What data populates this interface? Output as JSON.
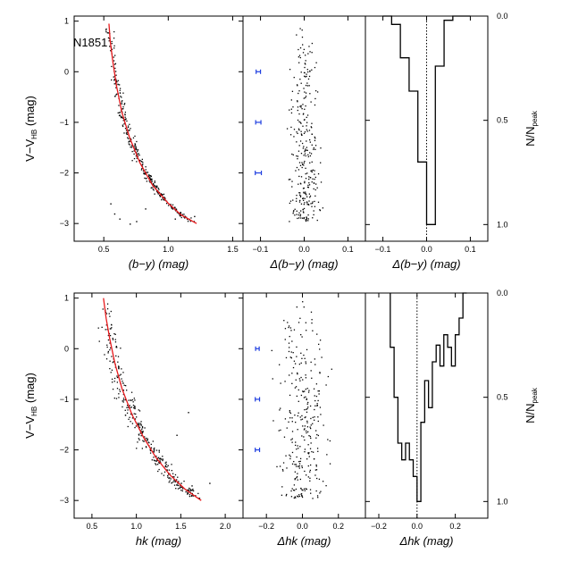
{
  "figure": {
    "cluster_label": "N1851",
    "colors": {
      "fiducial": "#e8191c",
      "errorbar": "#1f3fe0",
      "points": "#000000",
      "histogram": "#000000"
    }
  },
  "chart_data": [
    {
      "id": "top-cmd",
      "type": "scatter",
      "xlabel": "(b−y) (mag)",
      "ylabel": "V−V_HB (mag)",
      "xlim": [
        0.27,
        1.58
      ],
      "ylim": [
        1.1,
        -3.35
      ],
      "xticks": [
        0.5,
        1.0,
        1.5
      ],
      "xtick_labels": [
        "0.5",
        "1.0",
        "1.5"
      ],
      "yticks": [
        -3,
        -2,
        -1,
        0,
        1
      ],
      "ytick_labels": [
        "−3",
        "−2",
        "−1",
        "0",
        "1"
      ],
      "fiducial_line": {
        "x": [
          0.54,
          0.55,
          0.57,
          0.6,
          0.64,
          0.7,
          0.78,
          0.88,
          1.0,
          1.1,
          1.22
        ],
        "y": [
          0.95,
          0.6,
          0.2,
          -0.3,
          -0.8,
          -1.3,
          -1.8,
          -2.25,
          -2.6,
          -2.83,
          -3.0
        ]
      },
      "scatter_points": [
        [
          0.55,
          -2.6
        ],
        [
          0.58,
          -2.8
        ],
        [
          0.62,
          -2.9
        ],
        [
          0.7,
          -3.0
        ],
        [
          0.75,
          -2.95
        ],
        [
          0.82,
          -2.7
        ],
        [
          1.05,
          -2.9
        ],
        [
          1.2,
          -2.85
        ]
      ]
    },
    {
      "id": "top-delta",
      "type": "scatter",
      "xlabel": "Δ(b−y) (mag)",
      "xlim": [
        -0.14,
        0.14
      ],
      "ylim": [
        1.1,
        -3.35
      ],
      "xticks": [
        -0.1,
        0.0,
        0.1
      ],
      "xtick_labels": [
        "−0.1",
        "0.0",
        "0.1"
      ],
      "error_bars": [
        {
          "y": -2,
          "halfwidth": 0.007
        },
        {
          "y": -1,
          "halfwidth": 0.006
        },
        {
          "y": 0,
          "halfwidth": 0.005
        }
      ]
    },
    {
      "id": "top-hist",
      "type": "bar",
      "xlabel": "Δ(b−y) (mag)",
      "ylabel": "N/N_peak",
      "xlim": [
        -0.14,
        0.14
      ],
      "ylim": [
        0,
        1.08
      ],
      "xticks": [
        -0.1,
        0.0,
        0.1
      ],
      "xtick_labels": [
        "−0.1",
        "0.0",
        "0.1"
      ],
      "yticks": [
        0,
        0.5,
        1.0
      ],
      "ytick_labels": [
        "0.0",
        "0.5",
        "1.0"
      ],
      "bin_edges": [
        -0.1,
        -0.08,
        -0.06,
        -0.04,
        -0.02,
        0.0,
        0.02,
        0.04,
        0.06,
        0.08,
        0.1
      ],
      "values": [
        0.0,
        0.04,
        0.2,
        0.36,
        0.7,
        1.0,
        0.24,
        0.02,
        0.0,
        0.0
      ],
      "reference_line_x": 0.0
    },
    {
      "id": "bottom-cmd",
      "type": "scatter",
      "xlabel": "hk (mag)",
      "ylabel": "V−V_HB (mag)",
      "xlim": [
        0.3,
        2.2
      ],
      "ylim": [
        1.1,
        -3.35
      ],
      "xticks": [
        0.5,
        1.0,
        1.5,
        2.0
      ],
      "xtick_labels": [
        "0.5",
        "1.0",
        "1.5",
        "2.0"
      ],
      "yticks": [
        -3,
        -2,
        -1,
        0,
        1
      ],
      "ytick_labels": [
        "−3",
        "−2",
        "−1",
        "0",
        "1"
      ],
      "fiducial_line": {
        "x": [
          0.63,
          0.66,
          0.7,
          0.76,
          0.84,
          0.95,
          1.08,
          1.22,
          1.38,
          1.55,
          1.73
        ],
        "y": [
          1.0,
          0.6,
          0.2,
          -0.3,
          -0.8,
          -1.3,
          -1.75,
          -2.15,
          -2.5,
          -2.78,
          -3.0
        ]
      },
      "scatter_points": [
        [
          1.5,
          -2.65
        ],
        [
          1.62,
          -2.7
        ],
        [
          1.82,
          -2.65
        ],
        [
          1.35,
          -2.3
        ],
        [
          1.25,
          -2.0
        ],
        [
          1.45,
          -1.7
        ],
        [
          1.58,
          -1.25
        ]
      ]
    },
    {
      "id": "bottom-delta",
      "type": "scatter",
      "xlabel": "Δhk (mag)",
      "xlim": [
        -0.33,
        0.35
      ],
      "ylim": [
        1.1,
        -3.35
      ],
      "xticks": [
        -0.2,
        0.0,
        0.2
      ],
      "xtick_labels": [
        "−0.2",
        "0.0",
        "0.2"
      ],
      "error_bars": [
        {
          "y": -2,
          "halfwidth": 0.012
        },
        {
          "y": -1,
          "halfwidth": 0.012
        },
        {
          "y": 0,
          "halfwidth": 0.01
        }
      ]
    },
    {
      "id": "bottom-hist",
      "type": "bar",
      "xlabel": "Δhk (mag)",
      "ylabel": "N/N_peak",
      "xlim": [
        -0.27,
        0.37
      ],
      "ylim": [
        0,
        1.08
      ],
      "xticks": [
        -0.2,
        0.0,
        0.2
      ],
      "xtick_labels": [
        "−0.2",
        "0.0",
        "0.2"
      ],
      "yticks": [
        0,
        0.5,
        1.0
      ],
      "ytick_labels": [
        "0.0",
        "0.5",
        "1.0"
      ],
      "bin_edges": [
        -0.14,
        -0.12,
        -0.1,
        -0.08,
        -0.06,
        -0.04,
        -0.02,
        0.0,
        0.02,
        0.04,
        0.06,
        0.08,
        0.1,
        0.12,
        0.14,
        0.16,
        0.18,
        0.2,
        0.22,
        0.24,
        0.26
      ],
      "values": [
        0.26,
        0.5,
        0.72,
        0.8,
        0.72,
        0.8,
        0.88,
        1.0,
        0.62,
        0.42,
        0.55,
        0.33,
        0.25,
        0.35,
        0.2,
        0.26,
        0.35,
        0.2,
        0.12,
        0.0
      ],
      "reference_line_x": 0.0
    }
  ]
}
